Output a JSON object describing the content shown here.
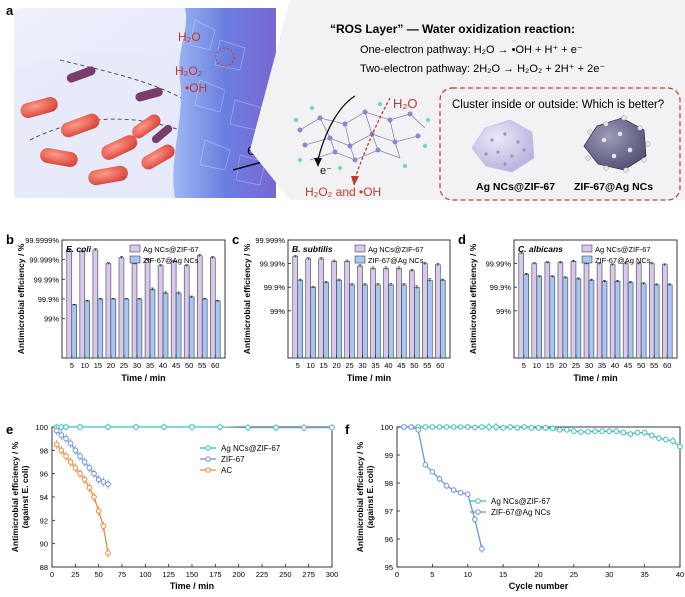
{
  "figure": {
    "panel_labels": [
      "a",
      "b",
      "c",
      "d",
      "e",
      "f"
    ]
  },
  "panel_a": {
    "title": "“ROS Layer” — Water oxidization reaction:",
    "one_electron": "One-electron pathway: H₂O → •OH + H⁺ + e⁻",
    "two_electron": "Two-electron pathway: 2H₂O → H₂O₂ + 2H⁺ + 2e⁻",
    "scene_labels": {
      "h2o": "H₂O",
      "h2o2": "H₂O₂",
      "oh": "•OH",
      "e": "e⁻"
    },
    "mechanism_labels": {
      "h2o": "H₂O",
      "e": "e⁻",
      "products": "H₂O₂ and •OH"
    },
    "cluster_question": "Cluster inside or outside: Which is better?",
    "cluster_left": "Ag NCs@ZIF-67",
    "cluster_right": "ZIF-67@Ag NCs",
    "colors": {
      "accent_red": "#c0392b",
      "purple": "#b7a9dc",
      "blue": "#8fb2e6"
    }
  },
  "chart_data": [
    {
      "panel": "b",
      "type": "bar",
      "organism": "E. coli",
      "xlabel": "Time / min",
      "ylabel": "Antimicrobial efficiency / %",
      "categories": [
        5,
        10,
        15,
        20,
        25,
        30,
        35,
        40,
        45,
        50,
        55,
        60
      ],
      "ytick_labels": [
        "99%",
        "99.9%",
        "99.99%",
        "99.999%",
        "99.9999%"
      ],
      "ylim_log_reduction": [
        1,
        6
      ],
      "series": [
        {
          "name": "Ag NCs@ZIF-67",
          "color": "#d8c8ec",
          "log_reduction": [
            5.5,
            5.4,
            5.5,
            4.8,
            5.1,
            4.8,
            5.0,
            4.7,
            4.9,
            4.7,
            5.2,
            5.1
          ],
          "errors": [
            0.06,
            0.05,
            0.06,
            0.05,
            0.06,
            0.05,
            0.06,
            0.05,
            0.06,
            0.05,
            0.06,
            0.06
          ]
        },
        {
          "name": "ZIF-67@Ag NCs",
          "color": "#a9c6f0",
          "log_reduction": [
            2.7,
            2.9,
            3.0,
            3.0,
            3.0,
            3.0,
            3.5,
            3.3,
            3.3,
            3.1,
            3.0,
            2.9
          ],
          "errors": [
            0.03,
            0.03,
            0.03,
            0.03,
            0.03,
            0.03,
            0.06,
            0.06,
            0.06,
            0.05,
            0.04,
            0.04
          ]
        }
      ]
    },
    {
      "panel": "c",
      "type": "bar",
      "organism": "B. subtilis",
      "xlabel": "Time / min",
      "ylabel": "Antimicrobial efficiency / %",
      "categories": [
        5,
        10,
        15,
        20,
        25,
        30,
        35,
        40,
        45,
        50,
        55,
        60
      ],
      "ytick_labels": [
        "99%",
        "99.9%",
        "99.99%",
        "99.999%"
      ],
      "ylim_log_reduction": [
        1,
        5
      ],
      "series": [
        {
          "name": "Ag NCs@ZIF-67",
          "color": "#d8c8ec",
          "log_reduction": [
            4.3,
            4.2,
            4.2,
            4.1,
            4.1,
            3.9,
            3.8,
            3.8,
            3.8,
            3.7,
            4.0,
            3.95
          ],
          "errors": [
            0.04,
            0.05,
            0.05,
            0.05,
            0.05,
            0.05,
            0.06,
            0.06,
            0.06,
            0.06,
            0.05,
            0.05
          ]
        },
        {
          "name": "ZIF-67@Ag NCs",
          "color": "#a9c6f0",
          "log_reduction": [
            3.3,
            3.0,
            3.2,
            3.3,
            3.1,
            3.1,
            3.1,
            3.1,
            3.1,
            3.0,
            3.3,
            3.3
          ],
          "errors": [
            0.04,
            0.04,
            0.05,
            0.04,
            0.05,
            0.05,
            0.05,
            0.05,
            0.05,
            0.06,
            0.06,
            0.04
          ]
        }
      ]
    },
    {
      "panel": "d",
      "type": "bar",
      "organism": "C. albicans",
      "xlabel": "Time / min",
      "ylabel": "Antimicrobial efficiency / %",
      "categories": [
        5,
        10,
        15,
        20,
        25,
        30,
        35,
        40,
        45,
        50,
        55,
        60
      ],
      "ytick_labels": [
        "99%",
        "99.9%",
        "99.99%"
      ],
      "ylim_log_reduction": [
        1,
        5
      ],
      "series": [
        {
          "name": "Ag NCs@ZIF-67",
          "color": "#d8c8ec",
          "log_reduction": [
            4.45,
            4.0,
            4.05,
            4.05,
            4.1,
            4.0,
            4.0,
            3.95,
            4.0,
            4.0,
            4.0,
            3.95
          ],
          "errors": [
            0.05,
            0.04,
            0.04,
            0.04,
            0.04,
            0.04,
            0.04,
            0.04,
            0.04,
            0.04,
            0.04,
            0.04
          ]
        },
        {
          "name": "ZIF-67@Ag NCs",
          "color": "#a9c6f0",
          "log_reduction": [
            3.55,
            3.45,
            3.45,
            3.4,
            3.35,
            3.3,
            3.25,
            3.25,
            3.2,
            3.15,
            3.1,
            3.1
          ],
          "errors": [
            0.04,
            0.04,
            0.04,
            0.04,
            0.04,
            0.04,
            0.04,
            0.04,
            0.04,
            0.04,
            0.04,
            0.04
          ]
        }
      ]
    },
    {
      "panel": "e",
      "type": "line",
      "xlabel": "Time / min",
      "ylabel": "Antimicrobial efficiency / %",
      "ylabel2": "(against E. coli)",
      "xlim": [
        0,
        300
      ],
      "ylim": [
        88,
        100
      ],
      "xticks": [
        0,
        25,
        50,
        75,
        100,
        125,
        150,
        175,
        200,
        225,
        250,
        275,
        300
      ],
      "yticks": [
        88,
        90,
        92,
        94,
        96,
        98,
        100
      ],
      "series": [
        {
          "name": "Ag NCs@ZIF-67",
          "color": "#3bbfb5",
          "marker": "circle",
          "x": [
            5,
            10,
            15,
            30,
            60,
            90,
            120,
            150,
            180,
            210,
            240,
            270,
            300
          ],
          "y": [
            100,
            100,
            100,
            100,
            100,
            100,
            100,
            100,
            100,
            99.95,
            99.95,
            99.95,
            99.95
          ],
          "err": [
            0.3,
            0.3,
            0.3,
            0.3,
            0.3,
            0.3,
            0.3,
            0.3,
            0.3,
            0.3,
            0.3,
            0.3,
            0.3
          ]
        },
        {
          "name": "ZIF-67",
          "color": "#6f93d9",
          "marker": "circle",
          "x": [
            5,
            10,
            15,
            20,
            25,
            30,
            35,
            40,
            45,
            50,
            55,
            60
          ],
          "y": [
            99.7,
            99.3,
            99.0,
            98.6,
            98.0,
            97.5,
            97.0,
            96.5,
            96.0,
            95.5,
            95.3,
            95.1
          ],
          "err": [
            0.4,
            0.4,
            0.4,
            0.4,
            0.4,
            0.4,
            0.4,
            0.4,
            0.4,
            0.4,
            0.4,
            0.4
          ]
        },
        {
          "name": "AC",
          "color": "#f08a3c",
          "marker": "circle",
          "x": [
            5,
            10,
            15,
            20,
            25,
            30,
            35,
            40,
            45,
            50,
            55,
            60
          ],
          "y": [
            98.5,
            98.0,
            97.5,
            97.0,
            96.5,
            96.0,
            95.5,
            94.8,
            94.0,
            92.8,
            91.5,
            89.2
          ],
          "err": [
            0.4,
            0.4,
            0.4,
            0.4,
            0.4,
            0.4,
            0.4,
            0.4,
            0.4,
            0.4,
            0.4,
            0.4
          ]
        }
      ]
    },
    {
      "panel": "f",
      "type": "line",
      "xlabel": "Cycle number",
      "ylabel": "Antimicrobial efficiency / %",
      "ylabel2": "(against E. coli)",
      "xlim": [
        0,
        40
      ],
      "ylim": [
        95,
        100
      ],
      "xticks": [
        0,
        5,
        10,
        15,
        20,
        25,
        30,
        35,
        40
      ],
      "yticks": [
        95,
        96,
        97,
        98,
        99,
        100
      ],
      "series": [
        {
          "name": "Ag NCs@ZIF-67",
          "color": "#3bbfb5",
          "marker": "circle",
          "x": [
            1,
            2,
            3,
            4,
            5,
            6,
            7,
            8,
            9,
            10,
            11,
            12,
            13,
            14,
            15,
            16,
            17,
            18,
            19,
            20,
            21,
            22,
            23,
            24,
            25,
            26,
            27,
            28,
            29,
            30,
            31,
            32,
            33,
            34,
            35,
            36,
            37,
            38,
            39,
            40
          ],
          "y": [
            100,
            100,
            100,
            100,
            100,
            100,
            100,
            100,
            100,
            100,
            99.98,
            100,
            100,
            100,
            99.97,
            100,
            99.97,
            100,
            99.97,
            99.97,
            99.97,
            99.95,
            99.9,
            99.9,
            99.85,
            99.82,
            99.83,
            99.85,
            99.85,
            99.85,
            99.85,
            99.8,
            99.75,
            99.8,
            99.8,
            99.7,
            99.6,
            99.55,
            99.5,
            99.3
          ],
          "err": [
            0.05,
            0.05,
            0.05,
            0.05,
            0.05,
            0.05,
            0.05,
            0.08,
            0.08,
            0.1,
            0.1,
            0.1,
            0.15,
            0.15,
            0.1,
            0.1,
            0.1,
            0.1,
            0.1,
            0.1,
            0.1,
            0.1,
            0.1,
            0.1,
            0.1,
            0.1,
            0.1,
            0.1,
            0.1,
            0.1,
            0.1,
            0.1,
            0.1,
            0.1,
            0.1,
            0.1,
            0.1,
            0.1,
            0.15,
            0.1
          ]
        },
        {
          "name": "ZIF-67@Ag NCs",
          "color": "#6f93d9",
          "marker": "circle",
          "x": [
            1,
            2,
            3,
            4,
            5,
            6,
            7,
            8,
            9,
            10,
            11,
            12
          ],
          "y": [
            100,
            100,
            99.9,
            98.65,
            98.4,
            98.15,
            97.9,
            97.75,
            97.65,
            97.6,
            96.7,
            95.65
          ],
          "err": [
            0.05,
            0.05,
            0.08,
            0.1,
            0.1,
            0.12,
            0.12,
            0.1,
            0.1,
            0.1,
            0.12,
            0.15
          ]
        }
      ]
    }
  ]
}
